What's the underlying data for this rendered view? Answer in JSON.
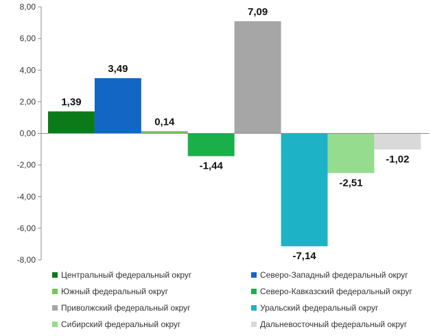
{
  "chart_data": {
    "type": "bar",
    "title": "",
    "xlabel": "",
    "ylabel": "",
    "ylim": [
      -8,
      8
    ],
    "yticks": [
      "8,00",
      "6,00",
      "4,00",
      "2,00",
      "0,00",
      "-2,00",
      "-4,00",
      "-6,00",
      "-8,00"
    ],
    "grid": false,
    "legend_position": "bottom",
    "series": [
      {
        "name": "Центральный федеральный округ",
        "value": 1.39,
        "label": "1,39",
        "color": "#0d7a1a"
      },
      {
        "name": "Северо-Западный федеральный округ",
        "value": 3.49,
        "label": "3,49",
        "color": "#1466c4"
      },
      {
        "name": "Южный федеральный округ",
        "value": 0.14,
        "label": "0,14",
        "color": "#74c45a"
      },
      {
        "name": "Северо-Кавказский федеральный округ",
        "value": -1.44,
        "label": "-1,44",
        "color": "#19b04a"
      },
      {
        "name": "Приволжский федеральный округ",
        "value": 7.09,
        "label": "7,09",
        "color": "#a6a6a6"
      },
      {
        "name": "Уральский федеральный округ",
        "value": -7.14,
        "label": "-7,14",
        "color": "#1eb2c6"
      },
      {
        "name": "Сибирский федеральный округ",
        "value": -2.51,
        "label": "-2,51",
        "color": "#96dc8f"
      },
      {
        "name": "Дальневосточный федеральный округ",
        "value": -1.02,
        "label": "-1,02",
        "color": "#d9d9d9"
      }
    ]
  }
}
